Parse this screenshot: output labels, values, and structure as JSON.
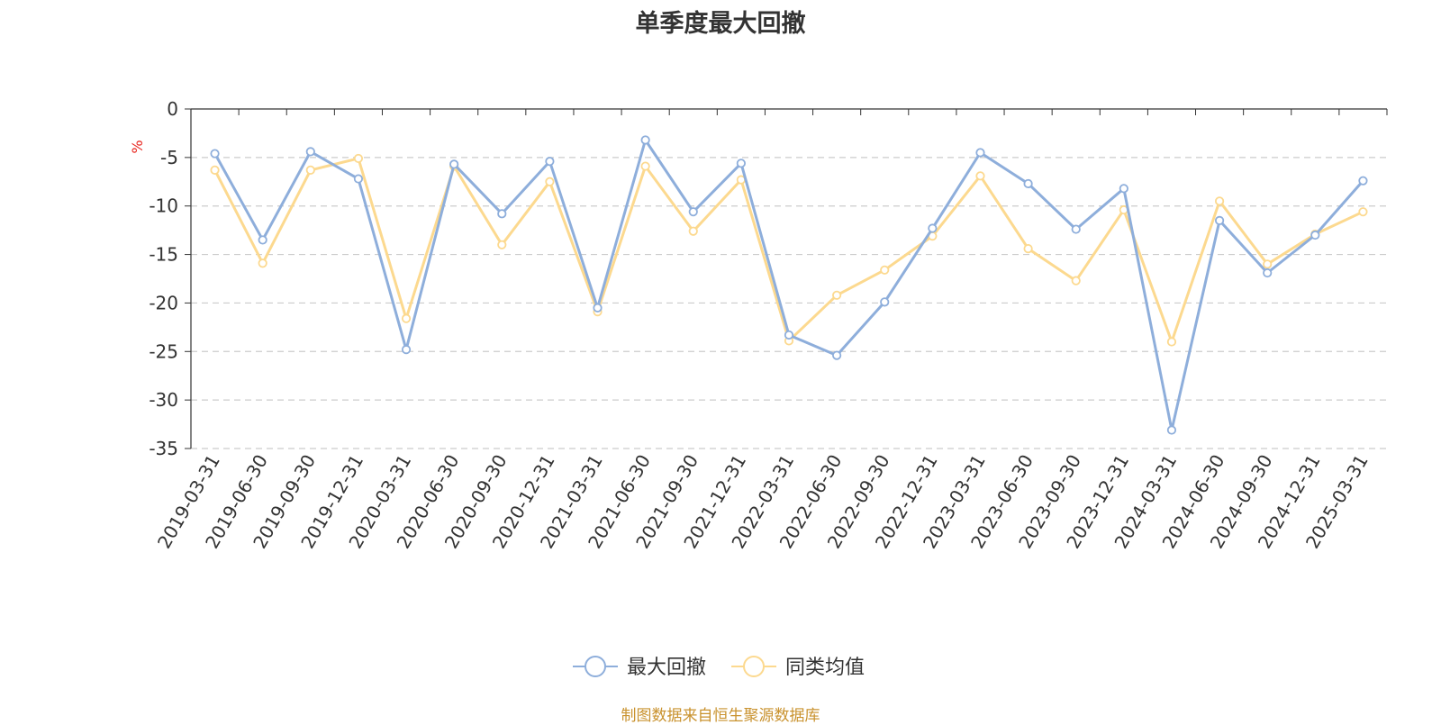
{
  "chart_data": {
    "type": "line",
    "title": "单季度最大回撤",
    "ylabel": "%",
    "ylim": [
      -35,
      0
    ],
    "yticks": [
      0,
      -5,
      -10,
      -15,
      -20,
      -25,
      -30,
      -35
    ],
    "grid": true,
    "legend_position": "bottom-center",
    "categories": [
      "2019-03-31",
      "2019-06-30",
      "2019-09-30",
      "2019-12-31",
      "2020-03-31",
      "2020-06-30",
      "2020-09-30",
      "2020-12-31",
      "2021-03-31",
      "2021-06-30",
      "2021-09-30",
      "2021-12-31",
      "2022-03-31",
      "2022-06-30",
      "2022-09-30",
      "2022-12-31",
      "2023-03-31",
      "2023-06-30",
      "2023-09-30",
      "2023-12-31",
      "2024-03-31",
      "2024-06-30",
      "2024-09-30",
      "2024-12-31",
      "2025-03-31"
    ],
    "series": [
      {
        "name": "最大回撤",
        "color": "#8eaedb",
        "values": [
          -4.6,
          -13.5,
          -4.4,
          -7.2,
          -24.8,
          -5.7,
          -10.8,
          -5.4,
          -20.5,
          -3.2,
          -10.6,
          -5.6,
          -23.3,
          -25.4,
          -19.9,
          -12.3,
          -4.5,
          -7.7,
          -12.4,
          -8.2,
          -33.1,
          -11.5,
          -16.9,
          -13.0,
          -7.4
        ]
      },
      {
        "name": "同类均值",
        "color": "#fcd98f",
        "values": [
          -6.3,
          -15.9,
          -6.3,
          -5.1,
          -21.6,
          -5.9,
          -14.0,
          -7.5,
          -20.9,
          -5.9,
          -12.6,
          -7.3,
          -23.9,
          -19.2,
          -16.6,
          -13.1,
          -6.9,
          -14.4,
          -17.7,
          -10.4,
          -24.0,
          -9.5,
          -16.0,
          -12.9,
          -10.6
        ]
      }
    ]
  },
  "footer": {
    "source": "制图数据来自恒生聚源数据库"
  }
}
